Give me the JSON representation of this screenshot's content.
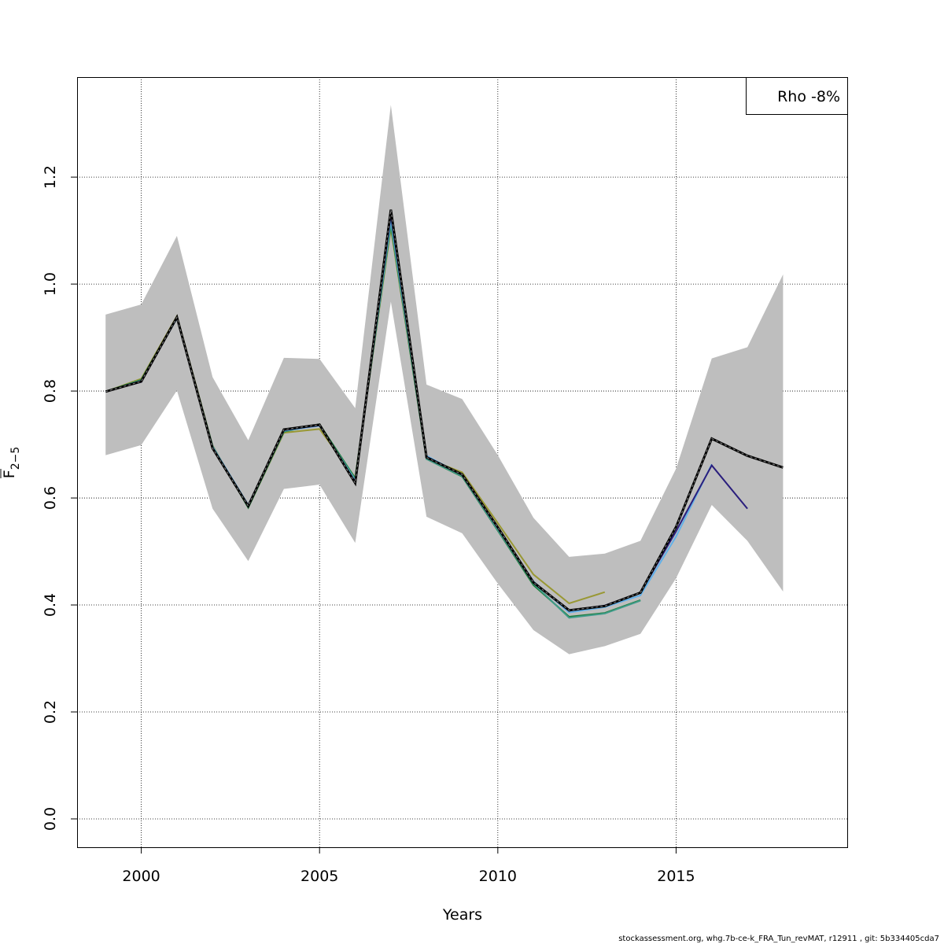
{
  "chart_data": {
    "type": "line",
    "title": "",
    "xlabel": "Years",
    "ylabel_main": "F",
    "ylabel_sub": "2−5",
    "xlim": [
      1998.2,
      2019.8
    ],
    "ylim": [
      -0.053,
      1.387
    ],
    "x_ticks": [
      2000,
      2005,
      2010,
      2015
    ],
    "y_ticks": [
      0.0,
      0.2,
      0.4,
      0.6,
      0.8,
      1.0,
      1.2
    ],
    "y_tick_labels": [
      "0.0",
      "0.2",
      "0.4",
      "0.6",
      "0.8",
      "1.0",
      "1.2"
    ],
    "grid": true,
    "legend_text": "Rho -8%",
    "legend_position": "top-right",
    "confidence_band": {
      "color": "#bebebe",
      "x": [
        1999,
        2000,
        2001,
        2002,
        2003,
        2004,
        2005,
        2006,
        2007,
        2008,
        2009,
        2010,
        2011,
        2012,
        2013,
        2014,
        2015,
        2016,
        2017,
        2018
      ],
      "upper": [
        0.943,
        0.962,
        1.09,
        0.826,
        0.708,
        0.862,
        0.86,
        0.768,
        1.335,
        0.812,
        0.785,
        0.68,
        0.563,
        0.49,
        0.496,
        0.52,
        0.655,
        0.861,
        0.882,
        1.018
      ],
      "lower": [
        0.68,
        0.699,
        0.801,
        0.58,
        0.482,
        0.617,
        0.625,
        0.516,
        0.967,
        0.565,
        0.534,
        0.44,
        0.353,
        0.308,
        0.323,
        0.346,
        0.45,
        0.587,
        0.52,
        0.425
      ]
    },
    "series": [
      {
        "color": "#000000",
        "width": 2,
        "dash": true,
        "x": [
          1999,
          2000,
          2001,
          2002,
          2003,
          2004,
          2005,
          2006,
          2007,
          2008,
          2009,
          2010,
          2011,
          2012,
          2013,
          2014,
          2015,
          2016,
          2017,
          2018
        ],
        "values": [
          0.799,
          0.818,
          0.938,
          0.693,
          0.585,
          0.728,
          0.737,
          0.628,
          1.139,
          0.676,
          0.644,
          0.545,
          0.442,
          0.39,
          0.398,
          0.423,
          0.546,
          0.711,
          0.679,
          0.657
        ]
      },
      {
        "color": "#2a1e7d",
        "width": 2,
        "dash": false,
        "x": [
          1999,
          2000,
          2001,
          2002,
          2003,
          2004,
          2005,
          2006,
          2007,
          2008,
          2009,
          2010,
          2011,
          2012,
          2013,
          2014,
          2015,
          2016,
          2017
        ],
        "values": [
          0.799,
          0.817,
          0.937,
          0.694,
          0.584,
          0.727,
          0.736,
          0.63,
          1.13,
          0.677,
          0.644,
          0.545,
          0.443,
          0.389,
          0.399,
          0.423,
          0.538,
          0.661,
          0.58
        ]
      },
      {
        "color": "#62b0e8",
        "width": 2,
        "dash": false,
        "x": [
          1999,
          2000,
          2001,
          2002,
          2003,
          2004,
          2005,
          2006,
          2007,
          2008,
          2009,
          2010,
          2011,
          2012,
          2013,
          2014,
          2015,
          2016
        ],
        "values": [
          0.799,
          0.819,
          0.936,
          0.696,
          0.587,
          0.726,
          0.735,
          0.632,
          1.122,
          0.679,
          0.643,
          0.543,
          0.444,
          0.386,
          0.396,
          0.418,
          0.528,
          0.663
        ]
      },
      {
        "color": "#3f9b89",
        "width": 2,
        "dash": false,
        "x": [
          1999,
          2000,
          2001,
          2002,
          2003,
          2004,
          2005,
          2006,
          2007,
          2008,
          2009,
          2010,
          2011,
          2012,
          2013,
          2014
        ],
        "values": [
          0.799,
          0.82,
          0.937,
          0.697,
          0.583,
          0.725,
          0.736,
          0.635,
          1.115,
          0.673,
          0.641,
          0.54,
          0.44,
          0.376,
          0.384,
          0.408
        ]
      },
      {
        "color": "#1a7a35",
        "width": 2,
        "dash": false,
        "x": [
          1999,
          2000,
          2001,
          2002,
          2003,
          2004,
          2005,
          2006,
          2007,
          2008,
          2009,
          2010,
          2011,
          2012,
          2013,
          2014
        ],
        "values": [
          0.799,
          0.821,
          0.938,
          0.697,
          0.582,
          0.724,
          0.738,
          0.637,
          1.11,
          0.673,
          0.64,
          0.539,
          0.437,
          0.378,
          0.385,
          0.409
        ]
      },
      {
        "color": "#999834",
        "width": 2,
        "dash": false,
        "x": [
          1999,
          2000,
          2001,
          2002,
          2003,
          2004,
          2005,
          2006,
          2007,
          2008,
          2009,
          2010,
          2011,
          2012,
          2013
        ],
        "values": [
          0.799,
          0.823,
          0.94,
          0.698,
          0.582,
          0.722,
          0.729,
          0.638,
          1.105,
          0.674,
          0.648,
          0.553,
          0.457,
          0.403,
          0.424
        ]
      }
    ]
  },
  "footer": "stockassessment.org, whg.7b-ce-k_FRA_Tun_revMAT, r12911 , git: 5b334405cda7"
}
